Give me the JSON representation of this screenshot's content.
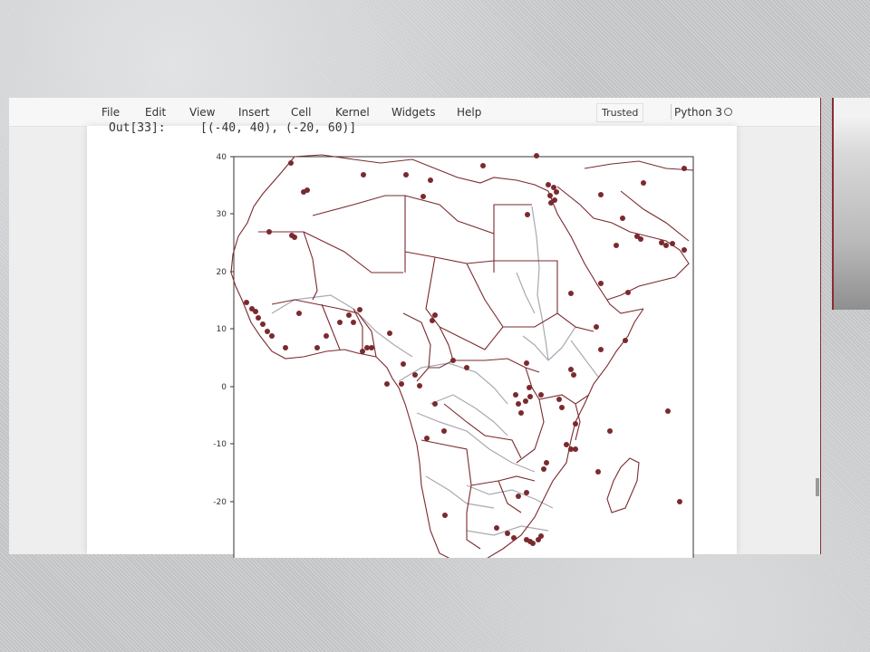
{
  "menu": {
    "items": [
      "File",
      "Edit",
      "View",
      "Insert",
      "Cell",
      "Kernel",
      "Widgets",
      "Help"
    ],
    "trusted_label": "Trusted",
    "kernel_name": "Python 3"
  },
  "output": {
    "prompt": "Out[33]:",
    "value": "[(-40, 40), (-20, 60)]"
  },
  "map": {
    "y_ticks": [
      "40",
      "30",
      "20",
      "10",
      "0",
      "-10",
      "-20"
    ],
    "point_color": "#7a2a2e",
    "border_color": "#7a2a2e",
    "river_color": "#a9a9b3",
    "points_count_shown": 110
  },
  "colors": {
    "window_edge": "#8a2c33",
    "notebook_bg": "#ffffff"
  }
}
